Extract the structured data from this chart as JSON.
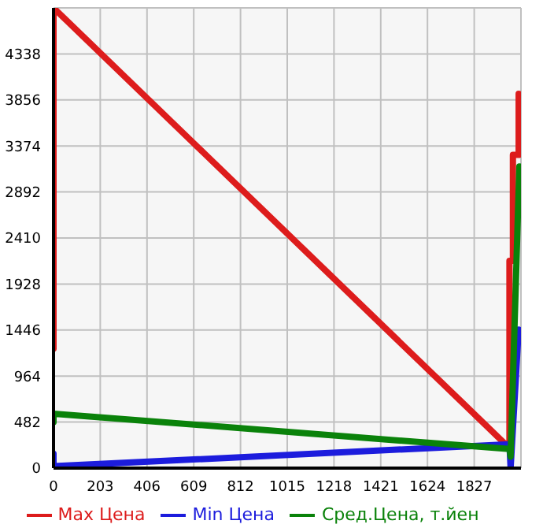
{
  "chart_data": {
    "type": "line",
    "xlim": [
      0,
      2030
    ],
    "xticks": [
      0,
      203,
      406,
      609,
      812,
      1015,
      1218,
      1421,
      1624,
      1827
    ],
    "ylim": [
      0,
      4820
    ],
    "yticks": [
      0,
      482,
      964,
      1446,
      1928,
      2410,
      2892,
      3374,
      3856,
      4338
    ],
    "grid": true,
    "legend": "bottom",
    "marker": "none",
    "line_style": "solid",
    "series": [
      {
        "name": "Max Цена",
        "color": "#dd1c1c",
        "x": [
          0,
          0,
          1980,
          1980,
          1995,
          1995,
          2020,
          2020
        ],
        "values": [
          1250,
          4820,
          210,
          2170,
          2170,
          3280,
          3280,
          3920
        ]
      },
      {
        "name": "Min Цена",
        "color": "#1c1cdd",
        "x": [
          0,
          0,
          1980,
          1985,
          2020
        ],
        "values": [
          150,
          20,
          250,
          0,
          1450
        ]
      },
      {
        "name": "Сред.Цена, т.йен",
        "color": "#0a820a",
        "x": [
          0,
          0,
          1980,
          1985,
          2023
        ],
        "values": [
          480,
          570,
          200,
          120,
          3160
        ]
      }
    ]
  }
}
